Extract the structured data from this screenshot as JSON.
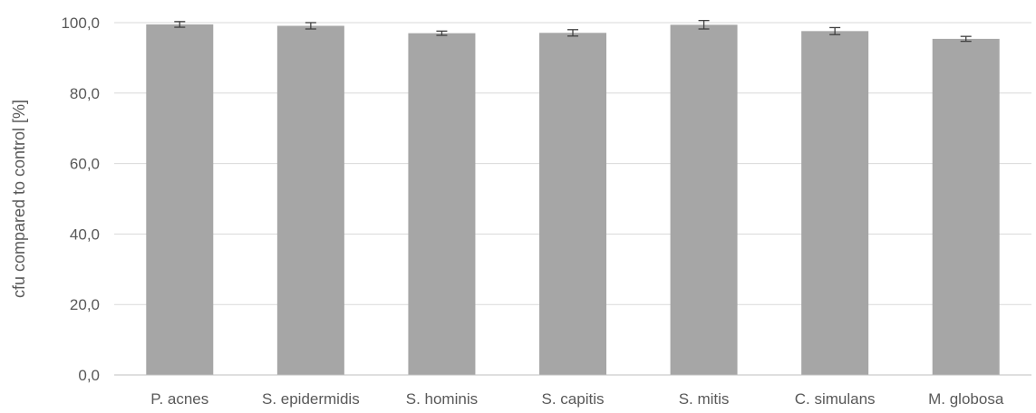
{
  "chart_data": {
    "type": "bar",
    "categories": [
      "P. acnes",
      "S. epidermidis",
      "S. hominis",
      "S. capitis",
      "S. mitis",
      "C. simulans",
      "M. globosa"
    ],
    "values": [
      99.5,
      99.1,
      97.0,
      97.1,
      99.4,
      97.6,
      95.4
    ],
    "errors": [
      0.8,
      0.9,
      0.6,
      0.9,
      1.2,
      1.0,
      0.7
    ],
    "title": "",
    "xlabel": "",
    "ylabel": "cfu compared to control [%]",
    "ylim": [
      0,
      100
    ],
    "yticks": [
      "0,0",
      "20,0",
      "40,0",
      "60,0",
      "80,0",
      "100,0"
    ],
    "grid": true,
    "colors": {
      "bar": "#a6a6a6",
      "grid": "#d9d9d9",
      "axis": "#bfbfbf",
      "error": "#404040",
      "text": "#595959"
    }
  }
}
